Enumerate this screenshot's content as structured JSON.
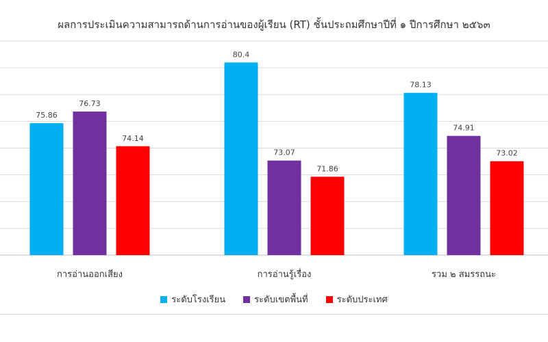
{
  "chart_data": {
    "type": "bar",
    "title": "ผลการประเมินความสามารถด้านการอ่านของผู้เรียน (RT) ชั้นประถมศึกษาปีที่ ๑ ปีการศึกษา ๒๕๖๓",
    "categories": [
      "การอ่านออกเสียง",
      "การอ่านรู้เรื่อง",
      "รวม ๒ สมรรถนะ"
    ],
    "series": [
      {
        "name": "ระดับโรงเรียน",
        "color": "#00B0F0",
        "values": [
          75.86,
          80.4,
          78.13
        ]
      },
      {
        "name": "ระดับเขตพื้นที่",
        "color": "#7030A0",
        "values": [
          76.73,
          73.07,
          74.91
        ]
      },
      {
        "name": "ระดับประเทศ",
        "color": "#FF0000",
        "values": [
          74.14,
          71.86,
          73.02
        ]
      }
    ],
    "ylim": [
      66,
      82
    ],
    "gridlines": true,
    "data_labels": true,
    "legend_position": "bottom"
  }
}
